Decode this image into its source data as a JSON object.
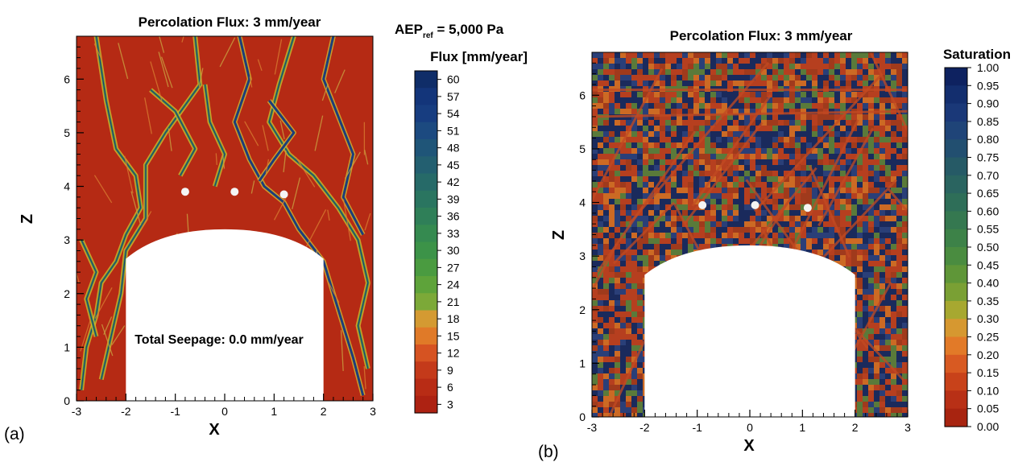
{
  "chart_data": [
    {
      "type": "heatmap",
      "panel_label": "(a)",
      "title": "Percolation Flux: 3 mm/year",
      "annotation_top": "AEP",
      "annotation_sub": "ref",
      "annotation_rest": " = 5,000 Pa",
      "colorbar_title": "Flux [mm/year]",
      "xlabel": "X",
      "ylabel": "Z",
      "xlim": [
        -3,
        3
      ],
      "ylim": [
        0,
        6.8
      ],
      "x_ticks": [
        "-3",
        "-2",
        "-1",
        "0",
        "1",
        "2",
        "3"
      ],
      "y_ticks": [
        "0",
        "1",
        "2",
        "3",
        "4",
        "5",
        "6"
      ],
      "colorbar_ticks": [
        "60",
        "57",
        "54",
        "51",
        "48",
        "45",
        "42",
        "39",
        "36",
        "33",
        "30",
        "27",
        "24",
        "21",
        "18",
        "15",
        "12",
        "9",
        "6",
        "3"
      ],
      "inner_text": "Total Seepage: 0.0 mm/year",
      "drift": {
        "x_left": -2,
        "x_right": 2,
        "wall_top": 2.65,
        "crown": 3.2
      },
      "markers": [
        [
          -0.8,
          3.9
        ],
        [
          0.2,
          3.9
        ],
        [
          1.2,
          3.85
        ]
      ]
    },
    {
      "type": "heatmap",
      "panel_label": "(b)",
      "title": "Percolation Flux: 3 mm/year",
      "colorbar_title": "Saturation",
      "xlabel": "X",
      "ylabel": "Z",
      "xlim": [
        -3,
        3
      ],
      "ylim": [
        0,
        6.8
      ],
      "x_ticks": [
        "-3",
        "-2",
        "-1",
        "0",
        "1",
        "2",
        "3"
      ],
      "y_ticks": [
        "0",
        "1",
        "2",
        "3",
        "4",
        "5",
        "6"
      ],
      "colorbar_ticks": [
        "1.00",
        "0.95",
        "0.90",
        "0.85",
        "0.80",
        "0.75",
        "0.70",
        "0.65",
        "0.60",
        "0.55",
        "0.50",
        "0.45",
        "0.40",
        "0.35",
        "0.30",
        "0.25",
        "0.20",
        "0.15",
        "0.10",
        "0.05",
        "0.00"
      ],
      "drift": {
        "x_left": -2,
        "x_right": 2,
        "wall_top": 2.65,
        "crown": 3.2
      },
      "markers": [
        [
          -0.9,
          3.95
        ],
        [
          0.1,
          3.95
        ],
        [
          1.1,
          3.9
        ]
      ]
    }
  ],
  "colors": {
    "background_red": "#b52a14",
    "channel_green": "#4f9a3c",
    "channel_yellow": "#d4b830",
    "channel_blue": "#1c3f7a",
    "sat_dark": "#1a2a5c",
    "sat_red": "#b63f1f",
    "sat_orange": "#cc6a24",
    "sat_green": "#5a7a3a",
    "colorbar_flux": [
      "#0f2d68",
      "#13357a",
      "#173d80",
      "#1c4a80",
      "#1f5578",
      "#235f70",
      "#266a68",
      "#2a7560",
      "#2f7f58",
      "#358a50",
      "#3c9348",
      "#4a9b40",
      "#5ea33a",
      "#7ca938",
      "#d49a32",
      "#e07a28",
      "#d65322",
      "#c43a1a",
      "#b82c15",
      "#ad2212"
    ],
    "colorbar_sat": [
      "#0e2260",
      "#132e6e",
      "#1a3878",
      "#1f4478",
      "#224f70",
      "#265a66",
      "#2a6460",
      "#2e6e58",
      "#357850",
      "#3d8248",
      "#4a8c40",
      "#5f9638",
      "#7aa034",
      "#a7a830",
      "#d69830",
      "#e27a28",
      "#d85a22",
      "#c8421a",
      "#b83016",
      "#a82410"
    ]
  }
}
